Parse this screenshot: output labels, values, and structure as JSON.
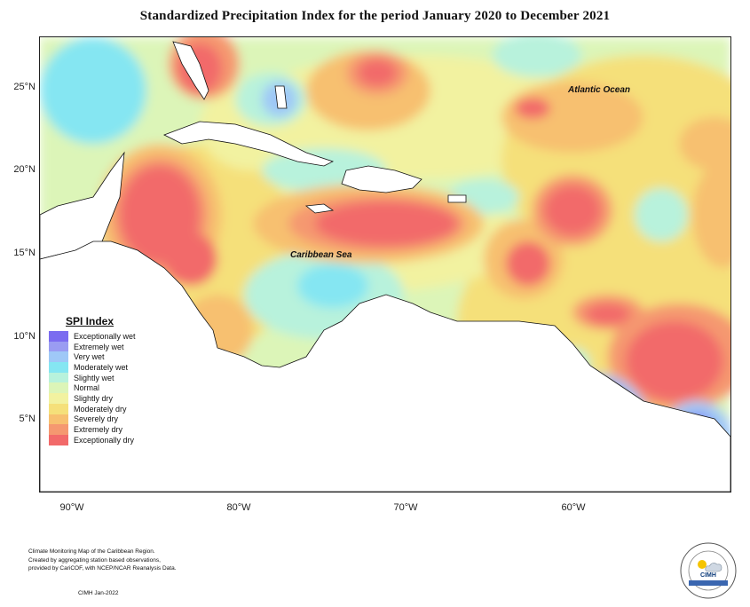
{
  "title": "Standardized Precipitation Index for the period January 2020 to December 2021",
  "map_labels": {
    "ocean": "Atlantic Ocean",
    "sea": "Caribbean Sea"
  },
  "latitude_ticks": [
    "25°N",
    "20°N",
    "15°N",
    "10°N",
    "5°N"
  ],
  "longitude_ticks": [
    "90°W",
    "80°W",
    "70°W",
    "60°W"
  ],
  "legend": {
    "title": "SPI Index",
    "items": [
      {
        "label": "Exceptionally wet",
        "color": "#7b6cf0"
      },
      {
        "label": "Extremely wet",
        "color": "#9a9cf2"
      },
      {
        "label": "Very wet",
        "color": "#9fc8f7"
      },
      {
        "label": "Moderately wet",
        "color": "#85e6f2"
      },
      {
        "label": "Slightly wet",
        "color": "#b8f2dc"
      },
      {
        "label": "Normal",
        "color": "#dcf5b8"
      },
      {
        "label": "Slightly dry",
        "color": "#f2f2a0"
      },
      {
        "label": "Moderately dry",
        "color": "#f5e07a"
      },
      {
        "label": "Severely dry",
        "color": "#f7c070"
      },
      {
        "label": "Extremely dry",
        "color": "#f59870"
      },
      {
        "label": "Exceptionally dry",
        "color": "#f26a6a"
      }
    ]
  },
  "footer": {
    "lines": [
      "Climate Monitoring Map of the Caribbean Region.",
      "Created by aggregating station based observations,",
      "provided by CariCOF, with NCEP/NCAR Reanalysis Data."
    ],
    "date": "CIMH Jan-2022"
  },
  "logo": {
    "text": "CIMH"
  }
}
